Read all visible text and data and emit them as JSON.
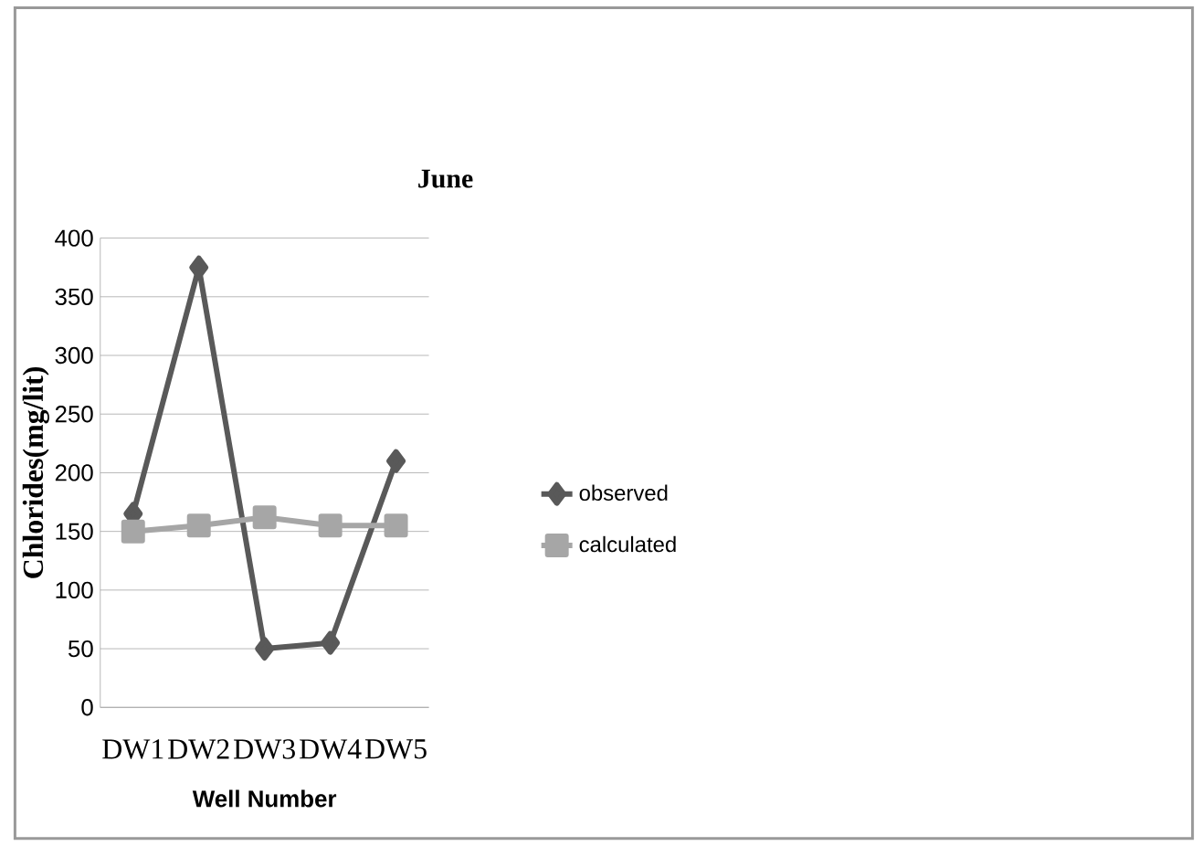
{
  "chart_data": {
    "type": "line",
    "title": "June",
    "xlabel": "Well Number",
    "ylabel": "Chlorides(mg/lit)",
    "categories": [
      "DW1",
      "DW2",
      "DW3",
      "DW4",
      "DW5"
    ],
    "series": [
      {
        "name": "observed",
        "color": "#595959",
        "marker": "diamond",
        "values": [
          165,
          375,
          50,
          55,
          210
        ]
      },
      {
        "name": "calculated",
        "color": "#a6a6a6",
        "marker": "square",
        "values": [
          150,
          155,
          162,
          155,
          155
        ]
      }
    ],
    "ylim": [
      0,
      400
    ],
    "yticks": [
      0,
      50,
      100,
      150,
      200,
      250,
      300,
      350,
      400
    ],
    "grid": "y",
    "legend": "right"
  }
}
